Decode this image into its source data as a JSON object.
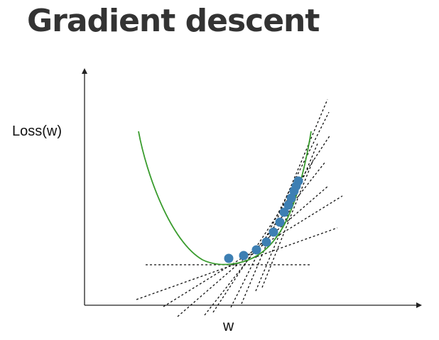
{
  "title": "Gradient descent",
  "axes": {
    "y_label": "Loss(w)",
    "x_label": "w"
  },
  "colors": {
    "title": "#333333",
    "curve": "#3a9c2e",
    "points": "#3d7fb3",
    "tangents": "#111111",
    "axes": "#222222"
  },
  "iterate_count": 12,
  "tangent_count": 10
}
